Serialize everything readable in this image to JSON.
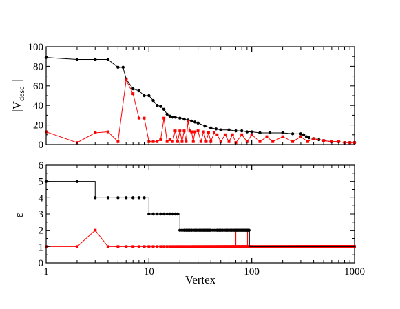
{
  "chart_data": [
    {
      "type": "line",
      "ylabel_main": "|V",
      "ylabel_sub": "desc",
      "ylabel_end": "|",
      "xlabel": "",
      "xscale": "log",
      "xlim": [
        1,
        1000
      ],
      "ylim": [
        0,
        100
      ],
      "yticks": [
        "0",
        "20",
        "40",
        "60",
        "80",
        "100"
      ],
      "series": [
        {
          "color": "#000000",
          "marker": "circle",
          "x": [
            1,
            2,
            3,
            4,
            5,
            5.6,
            6,
            7,
            8,
            9,
            10,
            11,
            12,
            13,
            14,
            15,
            16,
            17,
            18,
            20,
            22,
            24,
            26,
            28,
            30,
            35,
            40,
            45,
            50,
            60,
            70,
            80,
            90,
            100,
            120,
            150,
            200,
            250,
            300,
            320,
            340,
            360,
            400,
            450,
            500,
            600,
            700,
            800,
            900,
            1000
          ],
          "y": [
            89,
            87,
            87,
            87,
            79,
            79,
            67,
            57,
            55,
            50,
            50,
            45,
            40,
            39,
            36,
            31,
            29,
            28,
            28,
            27,
            26,
            25,
            24,
            23,
            22,
            19,
            17,
            16,
            15,
            15,
            14,
            14,
            13,
            13,
            12,
            12,
            12,
            11,
            11,
            10,
            8,
            7,
            6,
            5,
            4,
            3,
            3,
            2,
            2,
            2
          ]
        },
        {
          "color": "#ff0000",
          "marker": "square",
          "x": [
            1,
            2,
            3,
            4,
            5,
            6,
            7,
            8,
            9,
            10,
            11,
            12,
            13,
            14,
            15,
            16,
            17,
            18,
            19,
            20,
            21,
            22,
            23,
            24,
            25,
            26,
            27,
            28,
            30,
            32,
            34,
            36,
            38,
            40,
            43,
            46,
            50,
            55,
            60,
            65,
            70,
            80,
            90,
            100,
            120,
            140,
            160,
            200,
            250,
            300,
            350,
            400,
            500,
            600,
            700,
            800,
            900,
            1000
          ],
          "y": [
            13,
            2,
            12,
            13,
            3,
            66,
            52,
            27,
            27,
            3,
            3,
            3,
            5,
            27,
            3,
            5,
            3,
            14,
            3,
            14,
            3,
            14,
            3,
            24,
            14,
            13,
            3,
            13,
            14,
            3,
            13,
            3,
            12,
            3,
            12,
            10,
            3,
            10,
            3,
            10,
            2,
            10,
            3,
            10,
            3,
            8,
            3,
            8,
            3,
            8,
            3,
            6,
            4,
            3,
            3,
            2,
            2,
            2
          ]
        }
      ]
    },
    {
      "type": "line",
      "ylabel": "ε",
      "xlabel": "Vertex",
      "xscale": "log",
      "xlim": [
        1,
        1000
      ],
      "ylim": [
        0,
        6
      ],
      "yticks": [
        "0",
        "1",
        "2",
        "3",
        "4",
        "5",
        "6"
      ],
      "xticks": [
        "1",
        "10",
        "100",
        "1000"
      ],
      "series": [
        {
          "color": "#000000",
          "marker": "circle",
          "steps": [
            {
              "from": 1,
              "to": 2,
              "y": 5
            },
            {
              "from": 3,
              "to": 9,
              "y": 4
            },
            {
              "from": 10,
              "to": 19,
              "y": 3
            },
            {
              "from": 20,
              "to": 94,
              "y": 2
            },
            {
              "from": 95,
              "to": 1000,
              "y": 1
            }
          ],
          "spikes": []
        },
        {
          "color": "#ff0000",
          "marker": "square",
          "points": [
            [
              1,
              1
            ],
            [
              2,
              1
            ],
            [
              3,
              2
            ],
            [
              4,
              1
            ]
          ],
          "flat_from": 5,
          "flat_to": 1000,
          "flat_y": 1,
          "spikes": [
            [
              70,
              2
            ],
            [
              91,
              2
            ]
          ]
        }
      ]
    }
  ]
}
